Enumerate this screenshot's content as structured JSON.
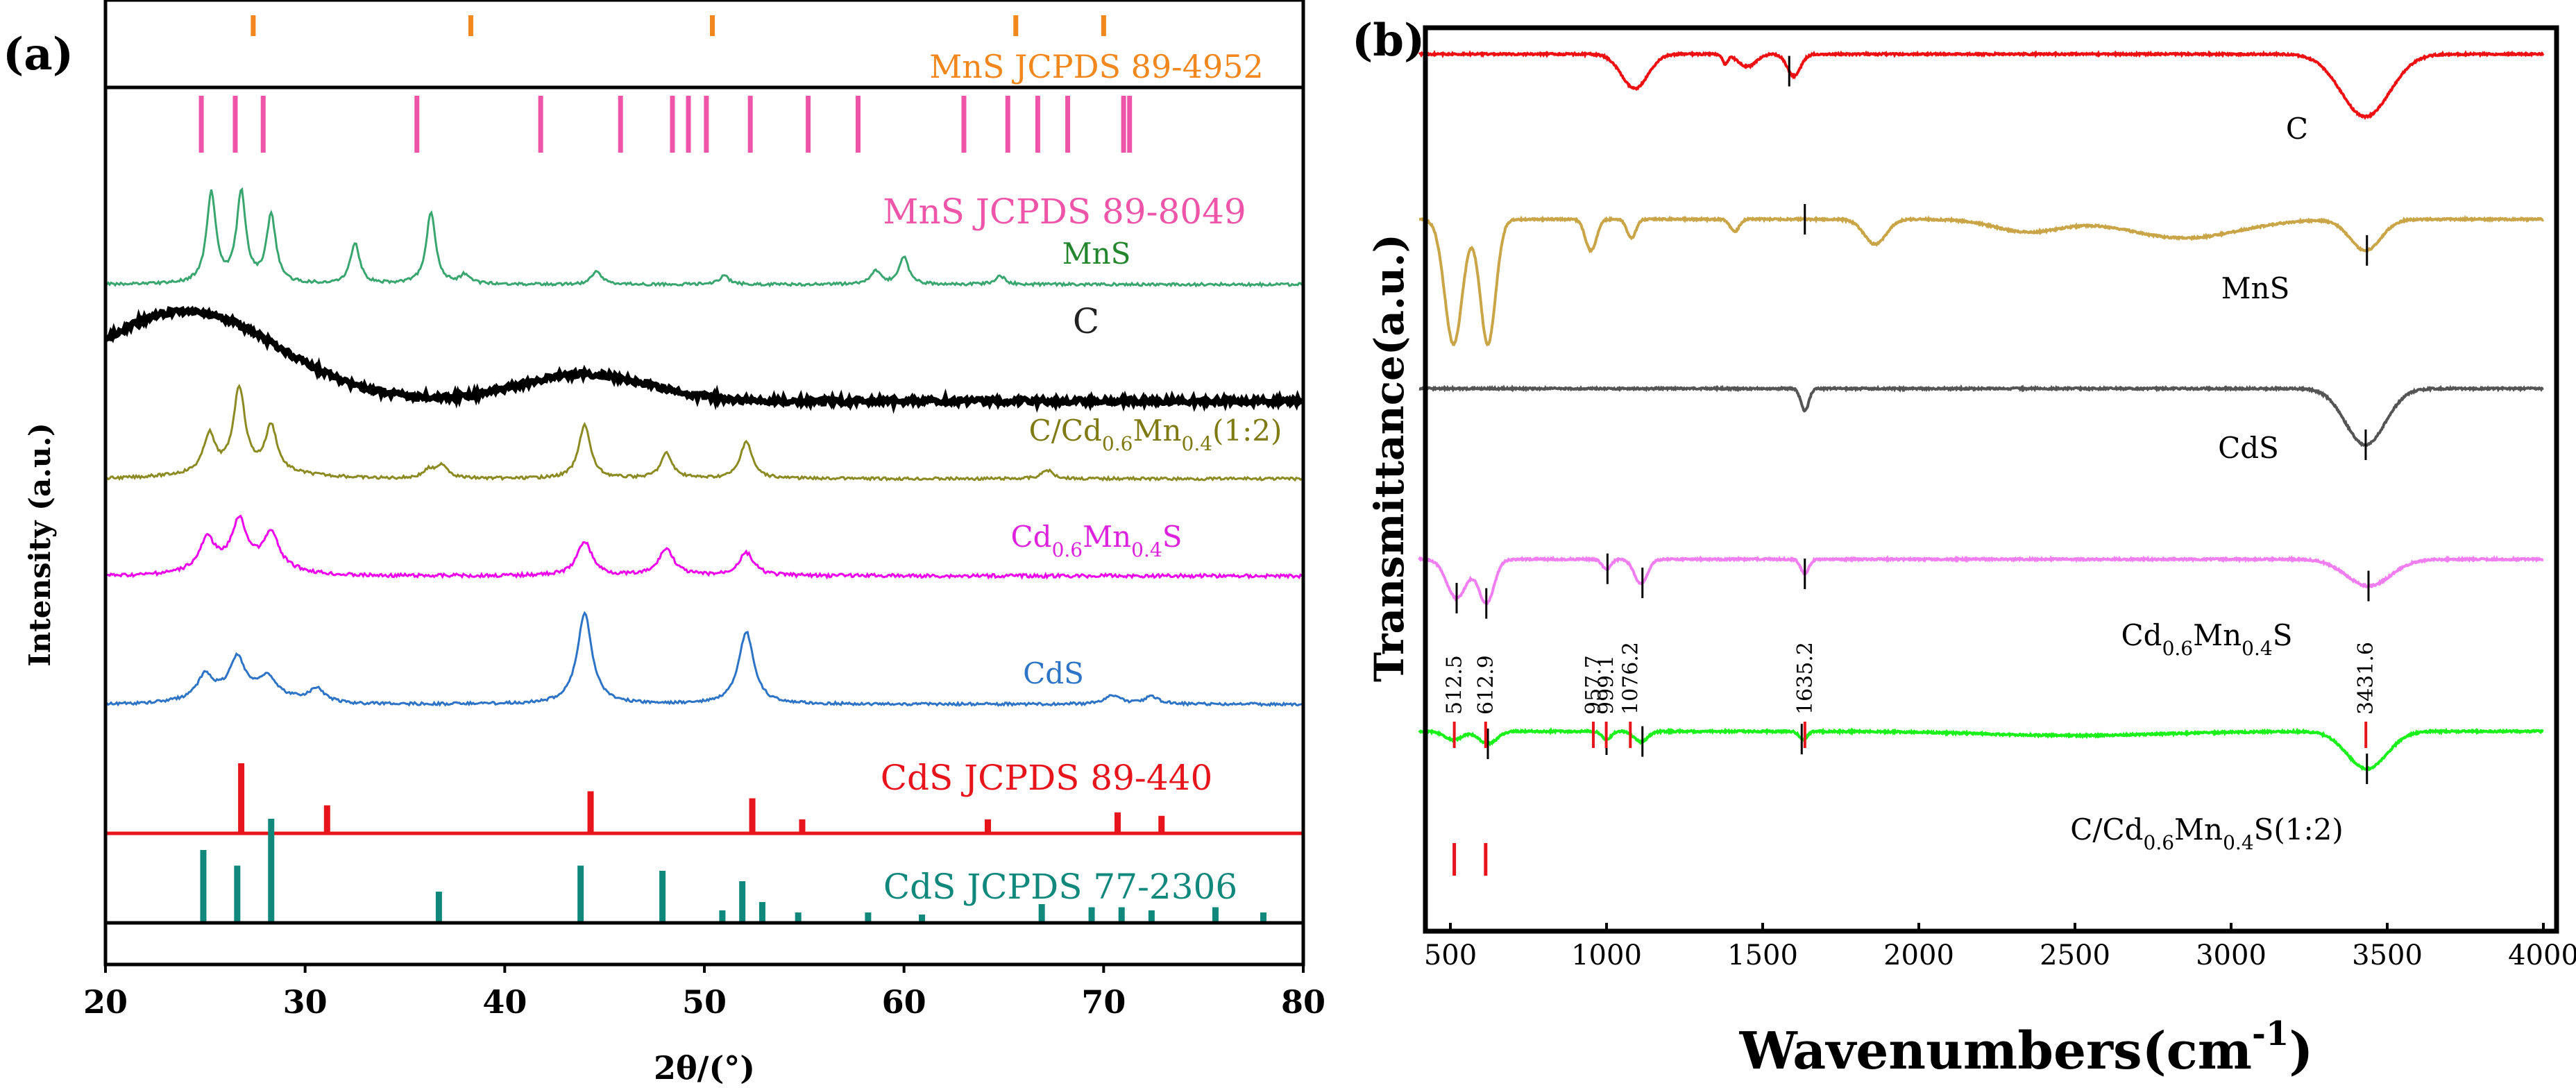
{
  "chart_data": [
    {
      "type": "line",
      "panel_label": "(a)",
      "xlabel": "2θ/(°)",
      "ylabel": "Intensity (a.u.)",
      "xlim": [
        20,
        80
      ],
      "xticks": [
        20,
        30,
        40,
        50,
        60,
        70,
        80
      ],
      "series": [
        {
          "name": "MnS",
          "color": "#3aa66f",
          "label_color": "#23852e",
          "label_x": 55,
          "peaks": [
            [
              25.3,
              1.0
            ],
            [
              26.8,
              1.0
            ],
            [
              28.3,
              0.75
            ],
            [
              32.5,
              0.45
            ],
            [
              36.3,
              0.8
            ],
            [
              38.0,
              0.1
            ],
            [
              44.6,
              0.15
            ],
            [
              51.0,
              0.1
            ],
            [
              58.6,
              0.15
            ],
            [
              60.0,
              0.3
            ],
            [
              64.8,
              0.1
            ]
          ]
        },
        {
          "name": "C",
          "color": "#000000",
          "label_color": "#222222",
          "label_x": 68,
          "peaks": [
            [
              24,
              1.0
            ],
            [
              44,
              0.3
            ]
          ]
        },
        {
          "name": "C/Cd",
          "sub1": "0.6",
          "mid": "Mn",
          "sub2": "0.4",
          "tail": "(1:2)",
          "color": "#8c8a22",
          "label_color": "#7f7a13",
          "label_x": 63,
          "peaks": [
            [
              25.2,
              0.45
            ],
            [
              26.7,
              1.0
            ],
            [
              28.3,
              0.55
            ],
            [
              36.2,
              0.1
            ],
            [
              36.9,
              0.15
            ],
            [
              44.0,
              0.65
            ],
            [
              48.1,
              0.3
            ],
            [
              52.1,
              0.45
            ],
            [
              67.2,
              0.1
            ]
          ]
        },
        {
          "name": "Cd",
          "sub1": "0.6",
          "mid": "Mn",
          "sub2": "0.4",
          "tail": "S",
          "color": "#ee00ee",
          "label_color": "#dd22dd",
          "label_x": 60,
          "peaks": [
            [
              25.1,
              0.4
            ],
            [
              26.7,
              0.6
            ],
            [
              28.3,
              0.45
            ],
            [
              44.0,
              0.45
            ],
            [
              48.1,
              0.35
            ],
            [
              52.1,
              0.3
            ]
          ]
        },
        {
          "name": "CdS",
          "color": "#2d73c6",
          "label_color": "#2d73c6",
          "label_x": 58.8,
          "peaks": [
            [
              25.0,
              0.25
            ],
            [
              26.6,
              0.4
            ],
            [
              28.1,
              0.2
            ],
            [
              30.6,
              0.15
            ],
            [
              44.0,
              1.0
            ],
            [
              52.1,
              0.8
            ],
            [
              70.5,
              0.1
            ],
            [
              72.4,
              0.08
            ]
          ]
        }
      ],
      "reference_patterns": [
        {
          "name": "MnS JCPDS 89-4952",
          "color": "#f2871d",
          "positions": [
            27.4,
            38.3,
            50.4,
            65.6,
            70.0
          ]
        },
        {
          "name": "MnS JCPDS 89-8049",
          "color": "#ee55a8",
          "positions": [
            24.8,
            26.5,
            27.9,
            35.6,
            41.8,
            45.8,
            48.4,
            49.2,
            50.1,
            52.3,
            55.2,
            57.7,
            63.0,
            65.2,
            66.7,
            68.2,
            71.0,
            71.3
          ]
        },
        {
          "name": "CdS JCPDS 89-440",
          "color": "#e8141c",
          "positions": [
            26.8,
            31.1,
            44.3,
            52.4,
            54.9,
            64.2,
            70.7,
            72.9
          ],
          "heights": [
            1.0,
            0.4,
            0.6,
            0.5,
            0.2,
            0.2,
            0.3,
            0.25
          ]
        },
        {
          "name": "CdS JCPDS 77-2306",
          "color": "#10887c",
          "positions": [
            24.9,
            26.6,
            28.3,
            36.7,
            43.8,
            47.9,
            50.9,
            51.9,
            52.9,
            54.7,
            58.2,
            60.9,
            66.9,
            69.4,
            70.9,
            72.4,
            75.6,
            78.0
          ],
          "heights": [
            0.7,
            0.55,
            1.0,
            0.3,
            0.55,
            0.5,
            0.12,
            0.4,
            0.2,
            0.1,
            0.1,
            0.08,
            0.18,
            0.15,
            0.15,
            0.12,
            0.15,
            0.1
          ]
        }
      ]
    },
    {
      "type": "line",
      "panel_label": "(b)",
      "xlabel": "Wavenumbers(cm",
      "xlabel_sup": "-1",
      "xlabel_tail": ")",
      "ylabel": "Transmittance(a.u.)",
      "xlim": [
        400,
        4000
      ],
      "xticks": [
        500,
        1000,
        1500,
        2000,
        2500,
        3000,
        3500,
        4000
      ],
      "series": [
        {
          "name": "C",
          "color": "#ef0f12",
          "label_x": 3380,
          "markers": [
            1585
          ],
          "base": 0.85,
          "dip_min": 1.0,
          "dips": [
            [
              1090,
              0.55,
              60
            ],
            [
              1380,
              0.15,
              12
            ],
            [
              1450,
              0.2,
              40
            ],
            [
              1600,
              0.35,
              30
            ],
            [
              3430,
              1.0,
              110
            ]
          ]
        },
        {
          "name": "MnS",
          "color": "#c9a548",
          "label_x": 3330,
          "markers": [
            1635,
            3435
          ],
          "base": 0.9,
          "dip_min": 0.3,
          "dips": [
            [
              510,
              1.0,
              40
            ],
            [
              620,
              1.0,
              35
            ],
            [
              950,
              0.25,
              25
            ],
            [
              1080,
              0.15,
              20
            ],
            [
              1410,
              0.1,
              20
            ],
            [
              1860,
              0.2,
              50
            ],
            [
              2350,
              0.1,
              150
            ],
            [
              2850,
              0.15,
              250
            ],
            [
              3430,
              0.25,
              70
            ]
          ]
        },
        {
          "name": "CdS",
          "color": "#545454",
          "label_x": 3300,
          "markers": [
            3431
          ],
          "base": 0.95,
          "dip_min": 1.0,
          "dips": [
            [
              1635,
              0.35,
              18
            ],
            [
              3430,
              0.9,
              90
            ]
          ]
        },
        {
          "name": "Cd",
          "sub1": "0.6",
          "mid": "Mn",
          "sub2": "0.4",
          "tail": "S",
          "color": "#f17ef1",
          "label_x": 3200,
          "markers": [
            520,
            615,
            1003,
            1115,
            1635,
            3440
          ],
          "base": 0.92,
          "dip_min": 0.45,
          "dips": [
            [
              520,
              0.8,
              45
            ],
            [
              615,
              0.9,
              35
            ],
            [
              1000,
              0.2,
              20
            ],
            [
              1110,
              0.5,
              30
            ],
            [
              1635,
              0.3,
              18
            ],
            [
              3440,
              0.55,
              100
            ]
          ]
        },
        {
          "name": "C/Cd",
          "sub1": "0.6",
          "mid": "Mn",
          "sub2": "0.4",
          "tail": "S(1:2)",
          "color": "#1af01a",
          "label_x": 3020,
          "markers": [
            620,
            1000,
            1115,
            1625,
            3435
          ],
          "base": 0.97,
          "dip_min": 0.55,
          "dips": [
            [
              510,
              0.2,
              40
            ],
            [
              620,
              0.3,
              40
            ],
            [
              1000,
              0.2,
              20
            ],
            [
              1110,
              0.25,
              30
            ],
            [
              1630,
              0.2,
              18
            ],
            [
              2500,
              0.1,
              400
            ],
            [
              3435,
              0.9,
              90
            ]
          ]
        }
      ],
      "peak_labels": [
        "512.5",
        "612.9",
        "957.7",
        "999.1",
        "1076.2",
        "1635.2",
        "3431.6"
      ],
      "peak_positions": [
        512.5,
        612.9,
        957.7,
        999.1,
        1076.2,
        1635.2,
        3431.6
      ]
    }
  ]
}
